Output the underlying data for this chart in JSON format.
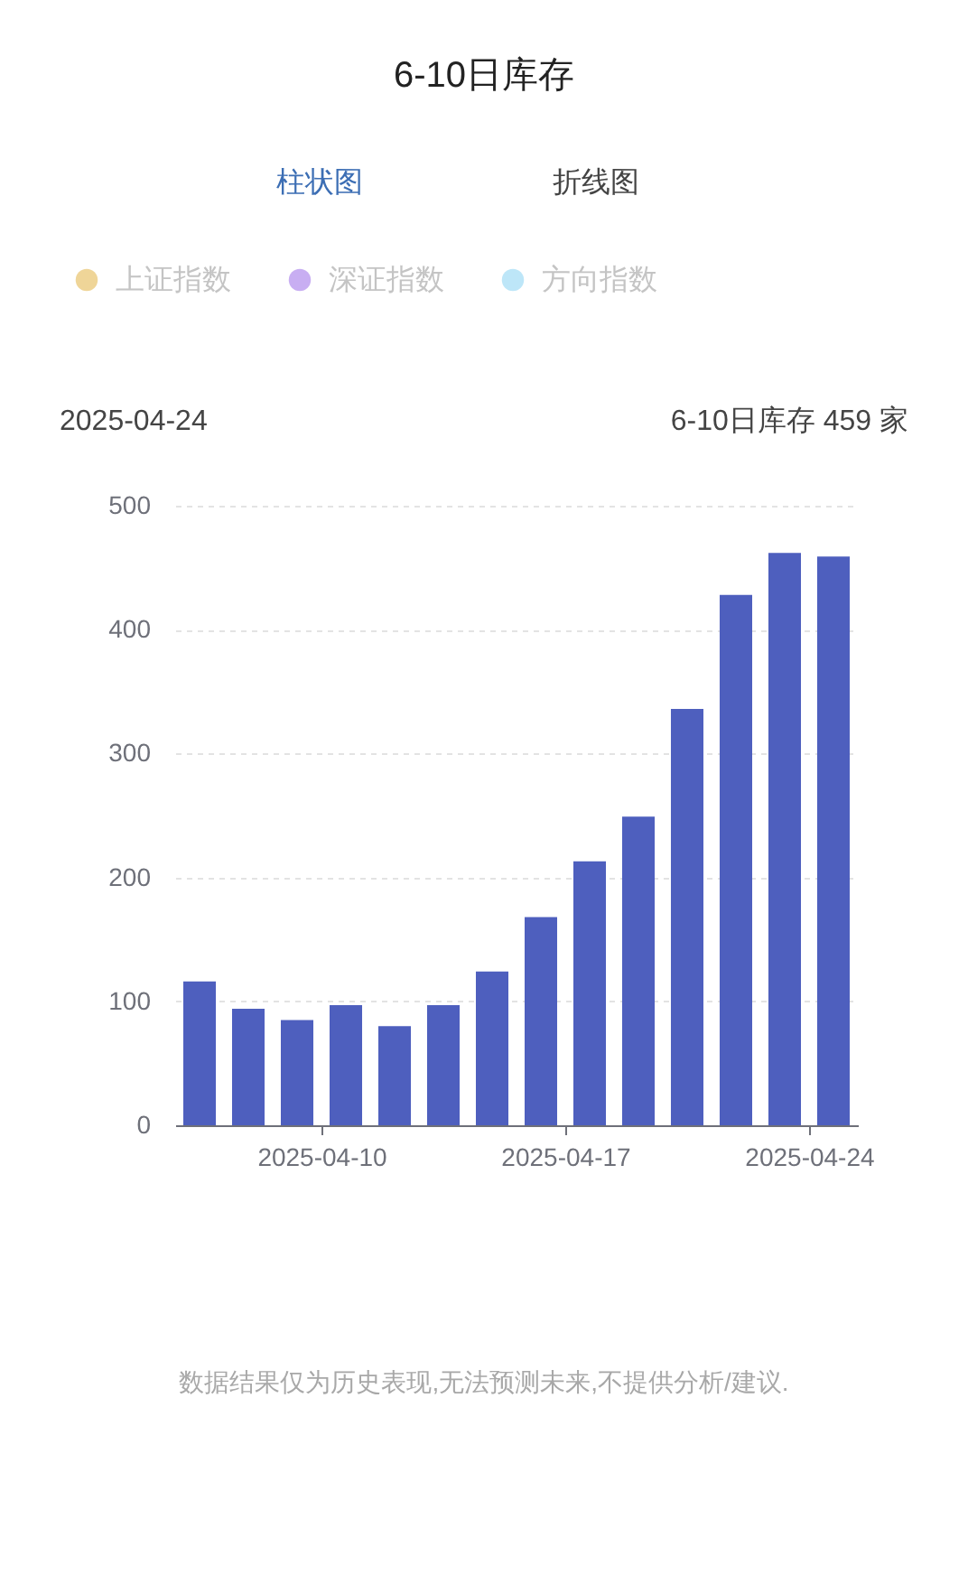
{
  "chart_data": {
    "type": "bar",
    "title": "6-10日库存",
    "categories": [
      null,
      null,
      null,
      "2025-04-10",
      null,
      null,
      null,
      null,
      "2025-04-17",
      null,
      null,
      null,
      null,
      "2025-04-24"
    ],
    "series": [
      {
        "color": "#4e5fbe",
        "values": [
          116,
          94,
          85,
          97,
          80,
          97,
          124,
          168,
          213,
          249,
          336,
          428,
          462,
          459
        ]
      },
      {
        "name": "上证指数",
        "color": "#efd598",
        "values": [
          null,
          null,
          null,
          null,
          null,
          null,
          null,
          null,
          null,
          null,
          null,
          null,
          null,
          null
        ]
      },
      {
        "name": "深证指数",
        "color": "#c8aef2",
        "values": [
          null,
          null,
          null,
          null,
          null,
          null,
          null,
          null,
          null,
          null,
          null,
          null,
          null,
          null
        ]
      },
      {
        "name": "方向指数",
        "color": "#bde6f8",
        "values": [
          null,
          null,
          null,
          null,
          null,
          null,
          null,
          null,
          null,
          null,
          null,
          null,
          null,
          null
        ]
      }
    ],
    "ylim": [
      0,
      500
    ],
    "yticks": [
      0,
      100,
      200,
      300,
      400,
      500
    ],
    "grid": "y",
    "legend": "top",
    "annotations": [
      "柱状图",
      "折线图",
      "2025-04-24",
      "6-10日库存 459 家",
      "数据结果仅为历史表现,无法预测未来,不提供分析/建议."
    ]
  }
}
